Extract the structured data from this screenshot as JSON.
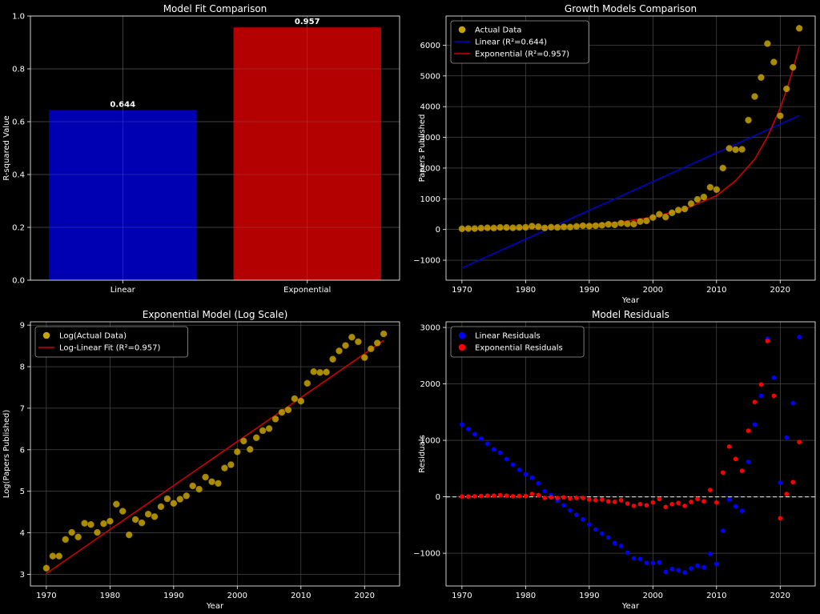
{
  "chart_data": [
    {
      "id": "model-fit",
      "type": "bar",
      "title": "Model Fit Comparison",
      "xlabel": "",
      "ylabel": "R-squared Value",
      "ylim": [
        0,
        1.0
      ],
      "yticks": [
        "0.0",
        "0.2",
        "0.4",
        "0.6",
        "0.8",
        "1.0"
      ],
      "categories": [
        "Linear",
        "Exponential"
      ],
      "values": [
        0.644,
        0.957
      ],
      "value_labels": [
        "0.644",
        "0.957"
      ],
      "colors": [
        "#0000b3",
        "#b30000"
      ],
      "grid": true
    },
    {
      "id": "growth-models",
      "type": "scatter",
      "title": "Growth Models Comparison",
      "xlabel": "Year",
      "ylabel": "Papers Published",
      "xlim": [
        1967.5,
        2025.5
      ],
      "ylim": [
        -1650,
        6950
      ],
      "xticks": [
        "1970",
        "1980",
        "1990",
        "2000",
        "2010",
        "2020"
      ],
      "yticks": [
        "−1000",
        "0",
        "1000",
        "2000",
        "3000",
        "4000",
        "5000",
        "6000"
      ],
      "legend": "top-left",
      "legend_entries": [
        "Actual Data",
        "Linear (R²=0.644)",
        "Exponential (R²=0.957)"
      ],
      "colors": {
        "points": "#c9a400",
        "linear": "#0000cc",
        "exp": "#cc0000"
      },
      "x": [
        1970,
        1971,
        1972,
        1973,
        1974,
        1975,
        1976,
        1977,
        1978,
        1979,
        1980,
        1981,
        1982,
        1983,
        1984,
        1985,
        1986,
        1987,
        1988,
        1989,
        1990,
        1991,
        1992,
        1993,
        1994,
        1995,
        1996,
        1997,
        1998,
        1999,
        2000,
        2001,
        2002,
        2003,
        2004,
        2005,
        2006,
        2007,
        2008,
        2009,
        2010,
        2011,
        2012,
        2013,
        2014,
        2015,
        2016,
        2017,
        2018,
        2019,
        2020,
        2021,
        2022,
        2023
      ],
      "y": [
        23,
        31,
        31,
        46,
        55,
        49,
        68,
        66,
        55,
        67,
        72,
        109,
        91,
        52,
        75,
        69,
        84,
        80,
        101,
        123,
        111,
        122,
        138,
        168,
        154,
        204,
        184,
        177,
        260,
        282,
        390,
        496,
        405,
        543,
        632,
        668,
        843,
        980,
        1058,
        1374,
        1300,
        2000,
        2640,
        2600,
        2610,
        3560,
        4330,
        4950,
        6050,
        5450,
        3700,
        4580,
        5280,
        6550
      ],
      "linear_fit": {
        "x": [
          1970,
          2023
        ],
        "y": [
          -1250,
          3710
        ]
      },
      "exp_fit": {
        "x": [
          1970,
          1975,
          1980,
          1985,
          1990,
          1995,
          2000,
          2005,
          2010,
          2013,
          2016,
          2018,
          2020,
          2021,
          2022,
          2023
        ],
        "y": [
          20,
          33,
          55,
          90,
          148,
          245,
          404,
          668,
          1100,
          1588,
          2291,
          3010,
          3958,
          4538,
          5204,
          5970
        ]
      },
      "grid": true
    },
    {
      "id": "log-scale",
      "type": "scatter",
      "title": "Exponential Model (Log Scale)",
      "xlabel": "Year",
      "ylabel": "Log(Papers Published)",
      "xlim": [
        1967.5,
        2025.5
      ],
      "ylim": [
        2.72,
        9.08
      ],
      "xticks": [
        "1970",
        "1980",
        "1990",
        "2000",
        "2010",
        "2020"
      ],
      "yticks": [
        "3",
        "4",
        "5",
        "6",
        "7",
        "8",
        "9"
      ],
      "legend": "top-left",
      "legend_entries": [
        "Log(Actual Data)",
        "Log-Linear Fit (R²=0.957)"
      ],
      "colors": {
        "points": "#c9a400",
        "fit": "#cc0000"
      },
      "x": [
        1970,
        1971,
        1972,
        1973,
        1974,
        1975,
        1976,
        1977,
        1978,
        1979,
        1980,
        1981,
        1982,
        1983,
        1984,
        1985,
        1986,
        1987,
        1988,
        1989,
        1990,
        1991,
        1992,
        1993,
        1994,
        1995,
        1996,
        1997,
        1998,
        1999,
        2000,
        2001,
        2002,
        2003,
        2004,
        2005,
        2006,
        2007,
        2008,
        2009,
        2010,
        2011,
        2012,
        2013,
        2014,
        2015,
        2016,
        2017,
        2018,
        2019,
        2020,
        2021,
        2022,
        2023
      ],
      "y": [
        3.15,
        3.44,
        3.44,
        3.84,
        4.01,
        3.9,
        4.23,
        4.2,
        4.01,
        4.22,
        4.28,
        4.69,
        4.52,
        3.95,
        4.32,
        4.24,
        4.45,
        4.39,
        4.63,
        4.82,
        4.71,
        4.81,
        4.89,
        5.13,
        5.05,
        5.34,
        5.23,
        5.19,
        5.56,
        5.64,
        5.95,
        6.21,
        6.01,
        6.29,
        6.46,
        6.51,
        6.74,
        6.9,
        6.96,
        7.23,
        7.17,
        7.6,
        7.88,
        7.86,
        7.87,
        8.18,
        8.38,
        8.51,
        8.71,
        8.6,
        8.22,
        8.43,
        8.57,
        8.79
      ],
      "fit": {
        "x": [
          1970,
          2023
        ],
        "y": [
          3.02,
          8.63
        ]
      },
      "grid": true
    },
    {
      "id": "residuals",
      "type": "scatter",
      "title": "Model Residuals",
      "xlabel": "Year",
      "ylabel": "Residuals",
      "xlim": [
        1967.5,
        2025.5
      ],
      "ylim": [
        -1580,
        3100
      ],
      "xticks": [
        "1970",
        "1980",
        "1990",
        "2000",
        "2010",
        "2020"
      ],
      "yticks": [
        "−1000",
        "0",
        "1000",
        "2000",
        "3000"
      ],
      "legend": "top-left",
      "legend_entries": [
        "Linear Residuals",
        "Exponential Residuals"
      ],
      "colors": {
        "linear": "#0000ff",
        "exp": "#ff0000",
        "zero": "#cccccc"
      },
      "x": [
        1970,
        1971,
        1972,
        1973,
        1974,
        1975,
        1976,
        1977,
        1978,
        1979,
        1980,
        1981,
        1982,
        1983,
        1984,
        1985,
        1986,
        1987,
        1988,
        1989,
        1990,
        1991,
        1992,
        1993,
        1994,
        1995,
        1996,
        1997,
        1998,
        1999,
        2000,
        2001,
        2002,
        2003,
        2004,
        2005,
        2006,
        2007,
        2008,
        2009,
        2010,
        2011,
        2012,
        2013,
        2014,
        2015,
        2016,
        2017,
        2018,
        2019,
        2020,
        2021,
        2022,
        2023
      ],
      "linear_resid": [
        1280,
        1200,
        1110,
        1030,
        940,
        840,
        780,
        670,
        570,
        480,
        400,
        340,
        240,
        100,
        30,
        -70,
        -150,
        -240,
        -320,
        -400,
        -490,
        -580,
        -650,
        -720,
        -820,
        -870,
        -990,
        -1090,
        -1100,
        -1170,
        -1170,
        -1160,
        -1330,
        -1280,
        -1300,
        -1340,
        -1270,
        -1220,
        -1250,
        -1010,
        -1190,
        -600,
        -50,
        -170,
        -250,
        620,
        1280,
        1790,
        2800,
        2110,
        250,
        1050,
        1660,
        2830
      ],
      "exp_resid": [
        5,
        5,
        10,
        15,
        20,
        20,
        30,
        20,
        10,
        15,
        15,
        50,
        30,
        -20,
        -10,
        -20,
        -10,
        -30,
        -20,
        -20,
        -50,
        -60,
        -50,
        -80,
        -90,
        -60,
        -120,
        -160,
        -130,
        -150,
        -100,
        -40,
        -180,
        -130,
        -110,
        -160,
        -90,
        -40,
        -80,
        120,
        -100,
        430,
        890,
        670,
        460,
        1170,
        1680,
        1990,
        2760,
        1790,
        -380,
        50,
        260,
        970
      ],
      "grid": true
    }
  ]
}
